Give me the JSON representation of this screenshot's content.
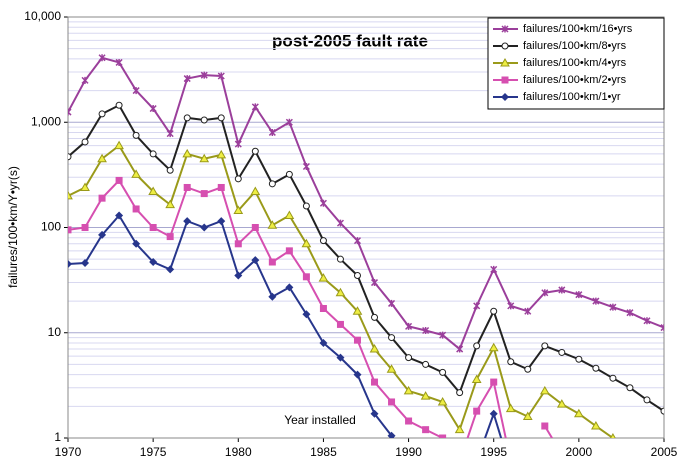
{
  "chart_data": {
    "type": "line",
    "title": "post-2005 fault rate",
    "y_label": "failures/100•km/Y•yr(s)",
    "annotation": "Year installed",
    "log_y": true,
    "grid": true,
    "minor_grid": true,
    "legend": "upper right",
    "x": [
      1970,
      1971,
      1972,
      1973,
      1974,
      1975,
      1976,
      1977,
      1978,
      1979,
      1980,
      1981,
      1982,
      1983,
      1984,
      1985,
      1986,
      1987,
      1988,
      1989,
      1990,
      1991,
      1992,
      1993,
      1994,
      1995,
      1996,
      1997,
      1998,
      1999,
      2000,
      2001,
      2002,
      2003,
      2004,
      2005
    ],
    "xlim": [
      1970,
      2005
    ],
    "xticks": [
      1970,
      1975,
      1980,
      1985,
      1990,
      1995,
      2000,
      2005
    ],
    "ylim": [
      1,
      10000
    ],
    "yticks": [
      1,
      10,
      100,
      {
        "value": 1000,
        "label": "1,000"
      },
      {
        "value": 10000,
        "label": "10,000"
      }
    ],
    "series": [
      {
        "name": "failures/100•km/16•yrs",
        "color": "#9b3f9b",
        "marker": "star",
        "values": [
          1250,
          2500,
          4100,
          3700,
          2000,
          1350,
          780,
          2600,
          2800,
          2750,
          620,
          1400,
          800,
          1000,
          380,
          170,
          110,
          75,
          30,
          19,
          11.5,
          10.5,
          9.5,
          7,
          18,
          40,
          18,
          16,
          24,
          25.5,
          23,
          20,
          17.5,
          15.5,
          13,
          11.2
        ]
      },
      {
        "name": "failures/100•km/8•yrs",
        "color": "#222222",
        "marker": "circle",
        "values": [
          470,
          650,
          1200,
          1450,
          750,
          500,
          350,
          1100,
          1050,
          1100,
          290,
          530,
          260,
          320,
          160,
          75,
          50,
          35,
          14,
          9,
          5.8,
          5,
          4.2,
          2.7,
          7.5,
          16,
          5.3,
          4.5,
          7.5,
          6.5,
          5.6,
          4.6,
          3.7,
          3,
          2.3,
          1.8
        ]
      },
      {
        "name": "failures/100•km/4•yrs",
        "color": "#9a9a1a",
        "marker": "triangle",
        "values": [
          200,
          240,
          450,
          600,
          320,
          220,
          165,
          500,
          450,
          490,
          145,
          220,
          105,
          130,
          70,
          33,
          24,
          16,
          7,
          4.5,
          2.8,
          2.5,
          2.2,
          1.2,
          3.6,
          7.2,
          1.9,
          1.6,
          2.8,
          2.1,
          1.7,
          1.3,
          1.0,
          0.75,
          null,
          null
        ]
      },
      {
        "name": "failures/100•km/2•yrs",
        "color": "#d64fb0",
        "marker": "square",
        "values": [
          95,
          100,
          190,
          280,
          150,
          100,
          82,
          240,
          210,
          240,
          70,
          100,
          47,
          60,
          34,
          17,
          12,
          8.5,
          3.4,
          2.2,
          1.45,
          1.2,
          1.0,
          0.6,
          1.8,
          3.4,
          0.6,
          null,
          1.3,
          0.7,
          null,
          null,
          null,
          null,
          null,
          null
        ]
      },
      {
        "name": "failures/100•km/1•yr",
        "color": "#27368c",
        "marker": "diamond",
        "values": [
          45,
          46,
          85,
          130,
          70,
          47,
          40,
          115,
          100,
          115,
          35,
          49,
          22,
          27,
          15,
          8,
          5.8,
          4,
          1.7,
          1.05,
          0.6,
          null,
          null,
          null,
          0.6,
          1.7,
          0.5,
          null,
          null,
          null,
          null,
          null,
          null,
          null,
          null,
          null
        ]
      }
    ]
  }
}
